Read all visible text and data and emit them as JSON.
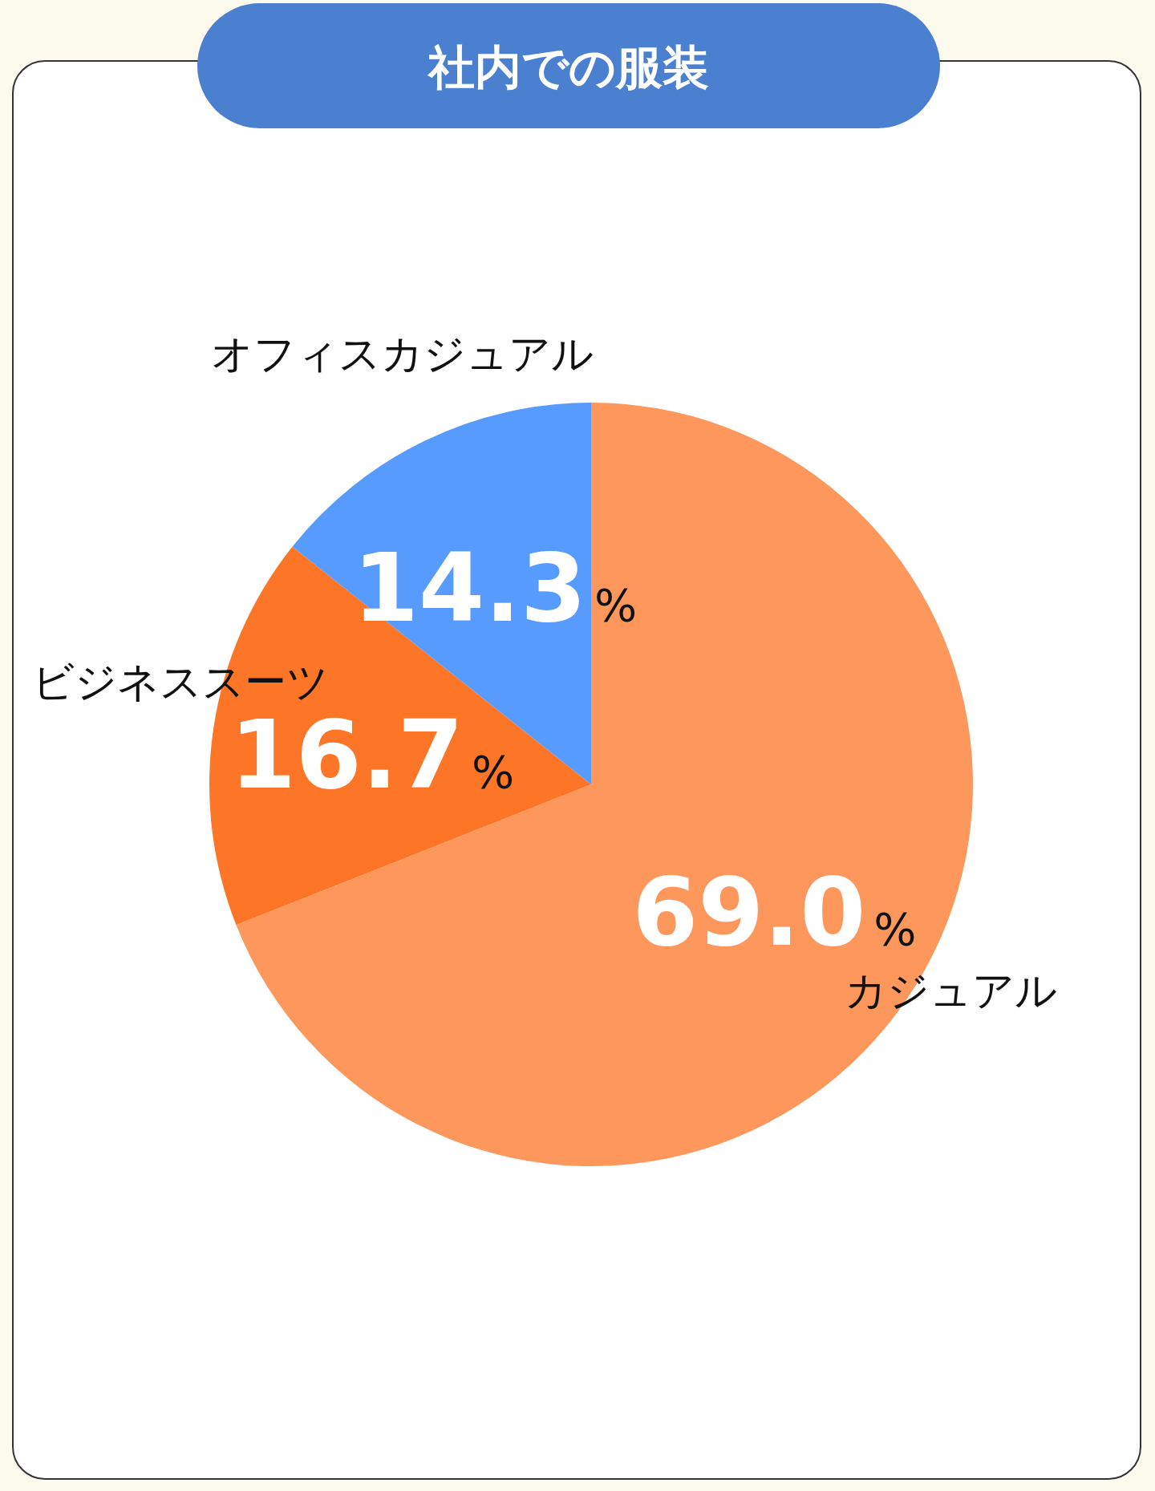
{
  "chart_data": {
    "type": "pie",
    "title": "社内での服装",
    "categories": [
      "カジュアル",
      "ビジネススーツ",
      "オフィスカジュアル"
    ],
    "values": [
      69.0,
      16.7,
      14.3
    ],
    "colors": [
      "#fe975b",
      "#fd7627",
      "#579bfe"
    ],
    "value_labels": [
      "69.0%",
      "16.7%",
      "14.3%"
    ]
  }
}
